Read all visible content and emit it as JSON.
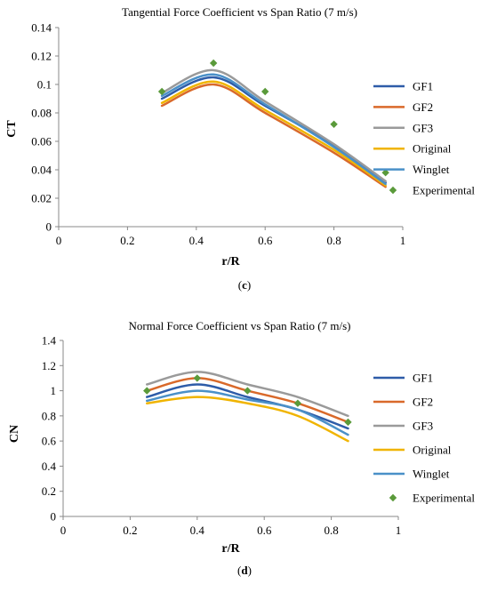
{
  "chart_data": [
    {
      "type": "line",
      "title": "Tangential Force Coefficient vs Span Ratio (7 m/s)",
      "xlabel": "r/R",
      "ylabel": "CT",
      "xlim": [
        0,
        1
      ],
      "ylim": [
        0,
        0.14
      ],
      "xticks": [
        "0",
        "0.2",
        "0.4",
        "0.6",
        "0.8",
        "1"
      ],
      "yticks": [
        "0",
        "0.02",
        "0.04",
        "0.06",
        "0.08",
        "0.1",
        "0.12",
        "0.14"
      ],
      "grid": false,
      "legend": "right",
      "caption_open": "(",
      "caption_letter": "c",
      "caption_close": ")",
      "series": [
        {
          "name": "GF1",
          "color": "#2e5ca8",
          "x": [
            0.3,
            0.45,
            0.6,
            0.8,
            0.95
          ],
          "values": [
            0.09,
            0.105,
            0.085,
            0.057,
            0.031
          ]
        },
        {
          "name": "GF2",
          "color": "#d9692a",
          "x": [
            0.3,
            0.45,
            0.6,
            0.8,
            0.95
          ],
          "values": [
            0.085,
            0.1,
            0.08,
            0.052,
            0.028
          ]
        },
        {
          "name": "GF3",
          "color": "#9a9a9a",
          "x": [
            0.3,
            0.45,
            0.6,
            0.8,
            0.95
          ],
          "values": [
            0.094,
            0.11,
            0.088,
            0.058,
            0.032
          ]
        },
        {
          "name": "Original",
          "color": "#f0b400",
          "x": [
            0.3,
            0.45,
            0.6,
            0.8,
            0.95
          ],
          "values": [
            0.087,
            0.102,
            0.082,
            0.054,
            0.029
          ]
        },
        {
          "name": "Winglet",
          "color": "#4a90c8",
          "x": [
            0.3,
            0.45,
            0.6,
            0.8,
            0.95
          ],
          "values": [
            0.092,
            0.107,
            0.086,
            0.056,
            0.03
          ]
        }
      ],
      "experimental": {
        "name": "Experimental",
        "color": "#5a9a3a",
        "x": [
          0.3,
          0.45,
          0.6,
          0.8,
          0.95
        ],
        "values": [
          0.095,
          0.115,
          0.095,
          0.072,
          0.038
        ]
      }
    },
    {
      "type": "line",
      "title": "Normal Force Coefficient vs Span Ratio (7 m/s)",
      "xlabel": "r/R",
      "ylabel": "CN",
      "xlim": [
        0,
        1
      ],
      "ylim": [
        0,
        1.4
      ],
      "xticks": [
        "0",
        "0.2",
        "0.4",
        "0.6",
        "0.8",
        "1"
      ],
      "yticks": [
        "0",
        "0.2",
        "0.4",
        "0.6",
        "0.8",
        "1",
        "1.2",
        "1.4"
      ],
      "grid": false,
      "legend": "right",
      "caption_open": "(",
      "caption_letter": "d",
      "caption_close": ")",
      "series": [
        {
          "name": "GF1",
          "color": "#2e5ca8",
          "x": [
            0.25,
            0.4,
            0.55,
            0.7,
            0.85
          ],
          "values": [
            0.95,
            1.05,
            0.95,
            0.85,
            0.7
          ]
        },
        {
          "name": "GF2",
          "color": "#d9692a",
          "x": [
            0.25,
            0.4,
            0.55,
            0.7,
            0.85
          ],
          "values": [
            1.0,
            1.1,
            1.0,
            0.9,
            0.75
          ]
        },
        {
          "name": "GF3",
          "color": "#9a9a9a",
          "x": [
            0.25,
            0.4,
            0.55,
            0.7,
            0.85
          ],
          "values": [
            1.05,
            1.15,
            1.05,
            0.95,
            0.8
          ]
        },
        {
          "name": "Original",
          "color": "#f0b400",
          "x": [
            0.25,
            0.4,
            0.55,
            0.7,
            0.85
          ],
          "values": [
            0.9,
            0.95,
            0.9,
            0.8,
            0.6
          ]
        },
        {
          "name": "Winglet",
          "color": "#4a90c8",
          "x": [
            0.25,
            0.4,
            0.55,
            0.7,
            0.85
          ],
          "values": [
            0.92,
            1.0,
            0.93,
            0.85,
            0.65
          ]
        }
      ],
      "experimental": {
        "name": "Experimental",
        "color": "#5a9a3a",
        "x": [
          0.25,
          0.4,
          0.55,
          0.7,
          0.85
        ],
        "values": [
          1.0,
          1.1,
          1.0,
          0.9,
          0.75
        ]
      }
    }
  ]
}
